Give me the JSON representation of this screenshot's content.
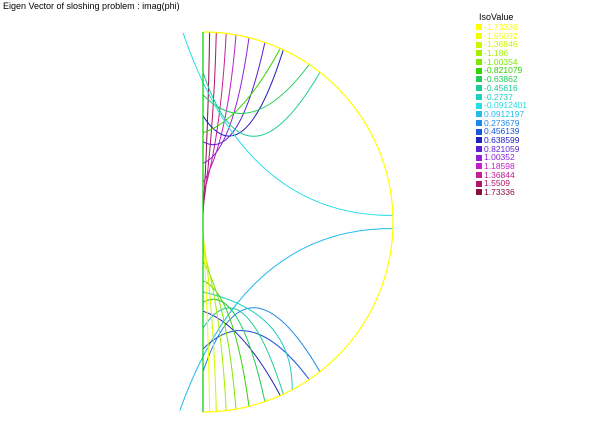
{
  "title": "Eigen  Vector of sloshing problem : imag(phi)",
  "colors": {
    "boundary": "#ffff00",
    "axis": "#00cc00"
  },
  "chart_data": {
    "type": "contour",
    "title": "Eigen  Vector of sloshing problem : imag(phi)",
    "legend_title": "IsoValue",
    "legend_position": "right",
    "isovalues": [
      {
        "label": "-1.73336",
        "value": -1.73336,
        "color": "#ffff00"
      },
      {
        "label": "-1.55092",
        "value": -1.55092,
        "color": "#f0ff00"
      },
      {
        "label": "-1.36846",
        "value": -1.36846,
        "color": "#d0f500"
      },
      {
        "label": "-1.186",
        "value": -1.186,
        "color": "#a6ee00"
      },
      {
        "label": "-1.00354",
        "value": -1.00354,
        "color": "#7ee600"
      },
      {
        "label": "-0.821079",
        "value": -0.821079,
        "color": "#33d400"
      },
      {
        "label": "-0.63862",
        "value": -0.63862,
        "color": "#20cc55"
      },
      {
        "label": "-0.45616",
        "value": -0.45616,
        "color": "#20cc99"
      },
      {
        "label": "-0.2737",
        "value": -0.2737,
        "color": "#20d0c0"
      },
      {
        "label": "-0.0912401",
        "value": -0.0912401,
        "color": "#22dde8"
      },
      {
        "label": "0.0912197",
        "value": 0.0912197,
        "color": "#22bbee"
      },
      {
        "label": "0.273679",
        "value": 0.273679,
        "color": "#1f88e6"
      },
      {
        "label": "0.456139",
        "value": 0.456139,
        "color": "#1b55d8"
      },
      {
        "label": "0.638599",
        "value": 0.638599,
        "color": "#2020bb"
      },
      {
        "label": "0.821059",
        "value": 0.821059,
        "color": "#5a1ed6"
      },
      {
        "label": "1.00352",
        "value": 1.00352,
        "color": "#9020d8"
      },
      {
        "label": "1.18598",
        "value": 1.18598,
        "color": "#c020c8"
      },
      {
        "label": "1.36844",
        "value": 1.36844,
        "color": "#c42095"
      },
      {
        "label": "1.5509",
        "value": 1.5509,
        "color": "#b0156a"
      },
      {
        "label": "1.73336",
        "value": 1.73336,
        "color": "#8a0f45"
      }
    ],
    "upper_contours": [
      {
        "value": 1.73336,
        "theta0": 178,
        "theta1": 88,
        "t": 0.06
      },
      {
        "value": 1.5509,
        "theta0": 176,
        "theta1": 86,
        "t": 0.14
      },
      {
        "value": 1.36844,
        "theta0": 172,
        "theta1": 83,
        "t": 0.24
      },
      {
        "value": 1.18598,
        "theta0": 168,
        "theta1": 80,
        "t": 0.35
      },
      {
        "value": 1.00352,
        "theta0": 162,
        "theta1": 76,
        "t": 0.47
      },
      {
        "value": 0.821059,
        "theta0": 155,
        "theta1": 71,
        "t": 0.6
      },
      {
        "value": 0.638599,
        "theta0": 146,
        "theta1": 65,
        "t": 0.76
      },
      {
        "value": -0.45616,
        "theta0": 128,
        "theta1": 52,
        "t": 0.95
      },
      {
        "value": -0.63862,
        "theta0": 138,
        "theta1": 56,
        "t": 0.5
      },
      {
        "value": -0.821079,
        "theta0": 152,
        "theta1": 66,
        "t": 0.25
      },
      {
        "value": -0.0912401,
        "theta0": 96,
        "theta1": 2,
        "t": 1.05
      }
    ],
    "lower_contours": [
      {
        "value": 0.0912197,
        "theta0": -97,
        "theta1": -2,
        "t": 1.05
      },
      {
        "value": 0.273679,
        "theta0": -128,
        "theta1": -52,
        "t": 0.95
      },
      {
        "value": 0.456139,
        "theta0": -138,
        "theta1": -56,
        "t": 0.5
      },
      {
        "value": 0.638599,
        "theta0": -152,
        "theta1": -66,
        "t": 0.25
      },
      {
        "value": -0.2737,
        "theta0": -118,
        "theta1": -178,
        "t": 0.0,
        "vertical": true,
        "y": 292
      },
      {
        "value": -0.45616,
        "theta0": -146,
        "theta1": -65,
        "t": 0.76
      },
      {
        "value": -0.63862,
        "theta0": -155,
        "theta1": -71,
        "t": 0.6
      },
      {
        "value": -0.821079,
        "theta0": -162,
        "theta1": -76,
        "t": 0.47
      },
      {
        "value": -1.00354,
        "theta0": -168,
        "theta1": -80,
        "t": 0.35
      },
      {
        "value": -1.186,
        "theta0": -172,
        "theta1": -83,
        "t": 0.24
      },
      {
        "value": -1.36846,
        "theta0": -176,
        "theta1": -86,
        "t": 0.14
      },
      {
        "value": -1.55092,
        "theta0": -178,
        "theta1": -88,
        "t": 0.06
      }
    ]
  }
}
